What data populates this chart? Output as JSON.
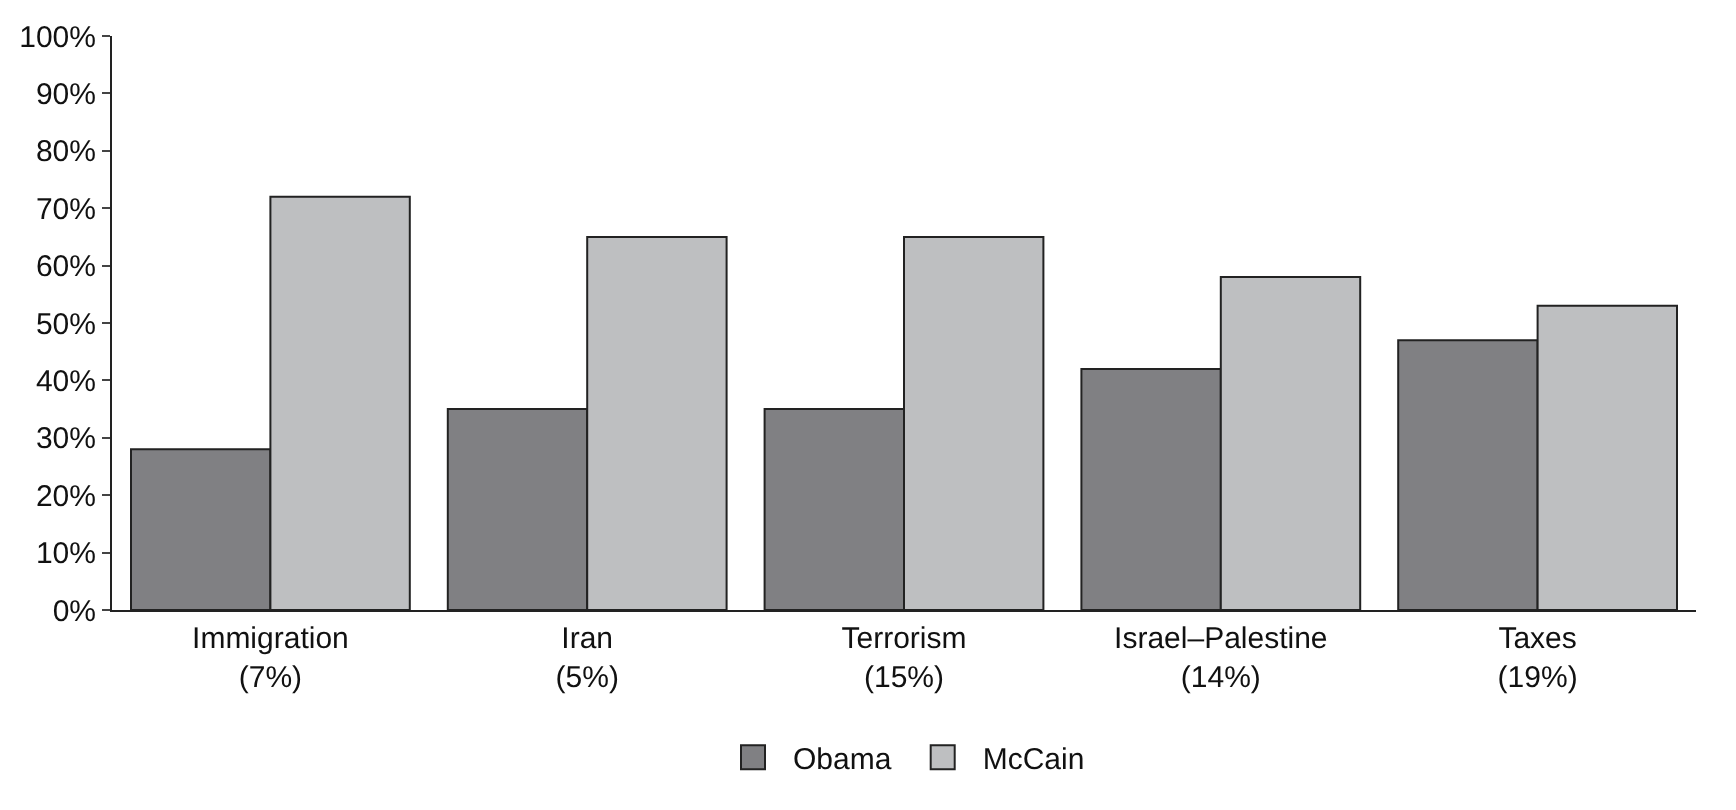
{
  "chart_data": {
    "type": "bar",
    "categories": [
      "Immigration\n(7%)",
      "Iran\n(5%)",
      "Terrorism\n(15%)",
      "Israel–Palestine\n(14%)",
      "Taxes\n(19%)"
    ],
    "series": [
      {
        "name": "Obama",
        "color": "#808083",
        "values": [
          28,
          35,
          35,
          42,
          47
        ]
      },
      {
        "name": "McCain",
        "color": "#bebfc1",
        "values": [
          72,
          65,
          65,
          58,
          53
        ]
      }
    ],
    "ylim": [
      0,
      100
    ],
    "yticks": [
      {
        "value": 0,
        "label": "0%"
      },
      {
        "value": 10,
        "label": "10%"
      },
      {
        "value": 20,
        "label": "20%"
      },
      {
        "value": 30,
        "label": "30%"
      },
      {
        "value": 40,
        "label": "40%"
      },
      {
        "value": 50,
        "label": "50%"
      },
      {
        "value": 60,
        "label": "60%"
      },
      {
        "value": 70,
        "label": "70%"
      },
      {
        "value": 80,
        "label": "80%"
      },
      {
        "value": 90,
        "label": "90%"
      },
      {
        "value": 100,
        "label": "100%"
      }
    ],
    "legend": "bottom"
  }
}
